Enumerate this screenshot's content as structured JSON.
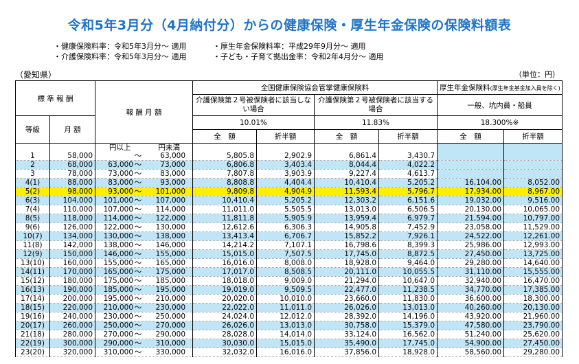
{
  "title": "令和5年3月分（4月納付分）からの健康保険・厚生年金保険の保険料額表",
  "notes_left": [
    "・健康保険料率：令和5年3月分～ 適用",
    "・介護保険料率：令和5年3月分～ 適用"
  ],
  "notes_right": [
    "・厚生年金保険料率：平成29年9月分～ 適用",
    "・子ども・子育て拠出金率：令和2年4月分～ 適用"
  ],
  "prefecture": "（愛知県）",
  "unit": "（単位：円）",
  "headers": {
    "standard": "標 準 報 酬",
    "grade": "等級",
    "monthly": "月 額",
    "remuneration": "報 酬 月 額",
    "kenpo": "全国健康保険協会管掌健康保険料",
    "kosei": "厚生年金保険料",
    "kosei_note": "(厚生年金基金加入員を除く)",
    "no_care": "介護保険第２号被保険者に該当しない場合",
    "with_care": "介護保険第２号被保険者に該当する場合",
    "general": "一般、坑内員・船員",
    "rate1": "10.01%",
    "rate2": "11.83%",
    "rate3": "18.300%※",
    "total": "全　額",
    "half": "折半額",
    "from": "円以上",
    "to": "円未満"
  },
  "rows": [
    {
      "g": "1",
      "m": "58,000",
      "from": "",
      "to": "63,000",
      "a1": "5,805.8",
      "h1": "2,902.9",
      "a2": "6,861.4",
      "h2": "3,430.7",
      "a3": "",
      "h3": ""
    },
    {
      "g": "2",
      "m": "68,000",
      "from": "63,000",
      "to": "73,000",
      "a1": "6,806.8",
      "h1": "3,403.4",
      "a2": "8,044.4",
      "h2": "4,022.2",
      "a3": "",
      "h3": ""
    },
    {
      "g": "3",
      "m": "78,000",
      "from": "73,000",
      "to": "83,000",
      "a1": "7,807.8",
      "h1": "3,903.9",
      "a2": "9,227.4",
      "h2": "4,613.7",
      "a3": "",
      "h3": ""
    },
    {
      "g": "4(1)",
      "m": "88,000",
      "from": "83,000",
      "to": "93,000",
      "a1": "8,808.8",
      "h1": "4,404.4",
      "a2": "10,410.4",
      "h2": "5,205.2",
      "a3": "16,104.00",
      "h3": "8,052.00"
    },
    {
      "g": "5(2)",
      "m": "98,000",
      "from": "93,000",
      "to": "101,000",
      "a1": "9,809.8",
      "h1": "4,904.9",
      "a2": "11,593.4",
      "h2": "5,796.7",
      "a3": "17,934.00",
      "h3": "8,967.00"
    },
    {
      "g": "6(3)",
      "m": "104,000",
      "from": "101,000",
      "to": "107,000",
      "a1": "10,410.4",
      "h1": "5,205.2",
      "a2": "12,303.2",
      "h2": "6,151.6",
      "a3": "19,032.00",
      "h3": "9,516.00"
    },
    {
      "g": "7(4)",
      "m": "110,000",
      "from": "107,000",
      "to": "114,000",
      "a1": "11,011.0",
      "h1": "5,505.5",
      "a2": "13,013.0",
      "h2": "6,506.5",
      "a3": "20,130.00",
      "h3": "10,065.00"
    },
    {
      "g": "8(5)",
      "m": "118,000",
      "from": "114,000",
      "to": "122,000",
      "a1": "11,811.8",
      "h1": "5,905.9",
      "a2": "13,959.4",
      "h2": "6,979.7",
      "a3": "21,594.00",
      "h3": "10,797.00"
    },
    {
      "g": "9(6)",
      "m": "126,000",
      "from": "122,000",
      "to": "130,000",
      "a1": "12,612.6",
      "h1": "6,306.3",
      "a2": "14,905.8",
      "h2": "7,452.9",
      "a3": "23,058.00",
      "h3": "11,529.00"
    },
    {
      "g": "10(7)",
      "m": "134,000",
      "from": "130,000",
      "to": "138,000",
      "a1": "13,413.4",
      "h1": "6,706.7",
      "a2": "15,852.2",
      "h2": "7,926.1",
      "a3": "24,522.00",
      "h3": "12,261.00"
    },
    {
      "g": "11(8)",
      "m": "142,000",
      "from": "138,000",
      "to": "146,000",
      "a1": "14,214.2",
      "h1": "7,107.1",
      "a2": "16,798.6",
      "h2": "8,399.3",
      "a3": "25,986.00",
      "h3": "12,993.00"
    },
    {
      "g": "12(9)",
      "m": "150,000",
      "from": "146,000",
      "to": "155,000",
      "a1": "15,015.0",
      "h1": "7,507.5",
      "a2": "17,745.0",
      "h2": "8,872.5",
      "a3": "27,450.00",
      "h3": "13,725.00"
    },
    {
      "g": "13(10)",
      "m": "160,000",
      "from": "155,000",
      "to": "165,000",
      "a1": "16,016.0",
      "h1": "8,008.0",
      "a2": "18,928.0",
      "h2": "9,464.0",
      "a3": "29,280.00",
      "h3": "14,640.00"
    },
    {
      "g": "14(11)",
      "m": "170,000",
      "from": "165,000",
      "to": "175,000",
      "a1": "17,017.0",
      "h1": "8,508.5",
      "a2": "20,111.0",
      "h2": "10,055.5",
      "a3": "31,110.00",
      "h3": "15,555.00"
    },
    {
      "g": "15(12)",
      "m": "180,000",
      "from": "175,000",
      "to": "185,000",
      "a1": "18,018.0",
      "h1": "9,009.0",
      "a2": "21,294.0",
      "h2": "10,647.0",
      "a3": "32,940.00",
      "h3": "16,470.00"
    },
    {
      "g": "16(13)",
      "m": "190,000",
      "from": "185,000",
      "to": "195,000",
      "a1": "19,019.0",
      "h1": "9,509.5",
      "a2": "22,477.0",
      "h2": "11,238.5",
      "a3": "34,770.00",
      "h3": "17,385.00"
    },
    {
      "g": "17(14)",
      "m": "200,000",
      "from": "195,000",
      "to": "210,000",
      "a1": "20,020.0",
      "h1": "10,010.0",
      "a2": "23,660.0",
      "h2": "11,830.0",
      "a3": "36,600.00",
      "h3": "18,300.00"
    },
    {
      "g": "18(15)",
      "m": "220,000",
      "from": "210,000",
      "to": "230,000",
      "a1": "22,022.0",
      "h1": "11,011.0",
      "a2": "26,026.0",
      "h2": "13,013.0",
      "a3": "40,260.00",
      "h3": "20,130.00"
    },
    {
      "g": "19(16)",
      "m": "240,000",
      "from": "230,000",
      "to": "250,000",
      "a1": "24,024.0",
      "h1": "12,012.0",
      "a2": "28,392.0",
      "h2": "14,196.0",
      "a3": "43,920.00",
      "h3": "21,960.00"
    },
    {
      "g": "20(17)",
      "m": "260,000",
      "from": "250,000",
      "to": "270,000",
      "a1": "26,026.0",
      "h1": "13,013.0",
      "a2": "30,758.0",
      "h2": "15,379.0",
      "a3": "47,580.00",
      "h3": "23,790.00"
    },
    {
      "g": "21(18)",
      "m": "280,000",
      "from": "270,000",
      "to": "290,000",
      "a1": "28,028.0",
      "h1": "14,014.0",
      "a2": "33,124.0",
      "h2": "16,562.0",
      "a3": "51,240.00",
      "h3": "25,620.00"
    },
    {
      "g": "22(19)",
      "m": "300,000",
      "from": "290,000",
      "to": "310,000",
      "a1": "30,030.0",
      "h1": "15,015.0",
      "a2": "35,490.0",
      "h2": "17,745.0",
      "a3": "54,900.00",
      "h3": "27,450.00"
    },
    {
      "g": "23(20)",
      "m": "320,000",
      "from": "310,000",
      "to": "330,000",
      "a1": "32,032.0",
      "h1": "16,016.0",
      "a2": "37,856.0",
      "h2": "18,928.0",
      "a3": "58,560.00",
      "h3": "29,280.00"
    }
  ]
}
